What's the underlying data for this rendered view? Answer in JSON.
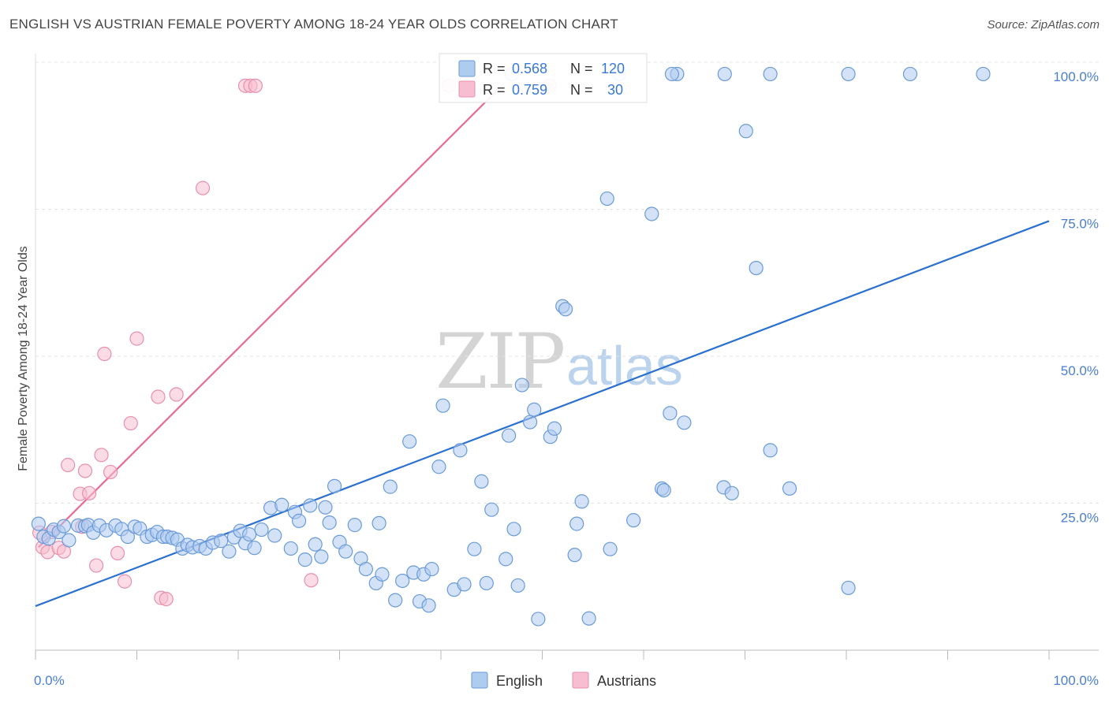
{
  "header": {
    "title": "ENGLISH VS AUSTRIAN FEMALE POVERTY AMONG 18-24 YEAR OLDS CORRELATION CHART",
    "source": "Source: ZipAtlas.com"
  },
  "watermark": {
    "part1": "ZIP",
    "part2": "atlas"
  },
  "stats_box": {
    "rows": [
      {
        "r_label": "R =",
        "r_value": "0.568",
        "n_label": "N =",
        "n_value": "120",
        "color": "#aecbf0",
        "stroke": "#6a9bd8"
      },
      {
        "r_label": "R =",
        "r_value": "0.759",
        "n_label": "N =",
        "n_value": "30",
        "color": "#f7bdd0",
        "stroke": "#e890ac"
      }
    ]
  },
  "legend": {
    "items": [
      {
        "label": "English",
        "color": "#aecbf0",
        "stroke": "#6a9bd8"
      },
      {
        "label": "Austrians",
        "color": "#f7bdd0",
        "stroke": "#e890ac"
      }
    ]
  },
  "chart_data": {
    "type": "scatter",
    "title": "ENGLISH VS AUSTRIAN FEMALE POVERTY AMONG 18-24 YEAR OLDS CORRELATION CHART",
    "xlabel": "",
    "ylabel": "Female Poverty Among 18-24 Year Olds",
    "xlim": [
      0,
      100
    ],
    "ylim": [
      0,
      100
    ],
    "x_tick_labels": [
      "0.0%",
      "100.0%"
    ],
    "y_tick_labels": [
      "25.0%",
      "50.0%",
      "75.0%",
      "100.0%"
    ],
    "y_ticks": [
      25,
      50,
      75,
      100
    ],
    "grid": true,
    "legend_position": "bottom-center",
    "series": [
      {
        "name": "English",
        "color": "#6a9bd8",
        "fill": "#aecbf0",
        "trend_color": "#2a70d0",
        "trend": {
          "x": [
            0,
            100
          ],
          "y": [
            7.5,
            73
          ]
        },
        "points": [
          [
            0.3,
            21.5
          ],
          [
            0.8,
            19.3
          ],
          [
            1.3,
            19.0
          ],
          [
            1.8,
            20.5
          ],
          [
            2.3,
            20.1
          ],
          [
            2.8,
            21.1
          ],
          [
            3.3,
            18.7
          ],
          [
            4.2,
            21.2
          ],
          [
            4.9,
            21.1
          ],
          [
            5.2,
            21.3
          ],
          [
            5.7,
            20.0
          ],
          [
            6.3,
            21.2
          ],
          [
            7.0,
            20.4
          ],
          [
            7.9,
            21.2
          ],
          [
            8.5,
            20.6
          ],
          [
            9.1,
            19.3
          ],
          [
            9.8,
            21.0
          ],
          [
            10.3,
            20.7
          ],
          [
            11.0,
            19.3
          ],
          [
            11.5,
            19.6
          ],
          [
            12.0,
            20.1
          ],
          [
            12.6,
            19.3
          ],
          [
            13.0,
            19.3
          ],
          [
            13.5,
            19.1
          ],
          [
            14.0,
            18.8
          ],
          [
            14.5,
            17.3
          ],
          [
            15.0,
            17.9
          ],
          [
            15.5,
            17.5
          ],
          [
            16.2,
            17.7
          ],
          [
            16.8,
            17.3
          ],
          [
            17.5,
            18.3
          ],
          [
            18.3,
            18.6
          ],
          [
            19.1,
            16.8
          ],
          [
            19.6,
            19.2
          ],
          [
            20.2,
            20.3
          ],
          [
            20.7,
            18.2
          ],
          [
            21.1,
            19.7
          ],
          [
            21.6,
            17.4
          ],
          [
            22.3,
            20.5
          ],
          [
            23.2,
            24.2
          ],
          [
            23.6,
            19.5
          ],
          [
            24.3,
            24.7
          ],
          [
            25.2,
            17.3
          ],
          [
            25.6,
            23.5
          ],
          [
            26.0,
            22.0
          ],
          [
            26.6,
            15.4
          ],
          [
            27.1,
            24.6
          ],
          [
            27.6,
            18.0
          ],
          [
            28.2,
            15.9
          ],
          [
            28.6,
            24.3
          ],
          [
            29.0,
            21.7
          ],
          [
            29.5,
            27.9
          ],
          [
            30.0,
            18.4
          ],
          [
            30.6,
            16.8
          ],
          [
            31.5,
            21.3
          ],
          [
            32.1,
            15.6
          ],
          [
            32.6,
            13.8
          ],
          [
            33.6,
            11.4
          ],
          [
            33.9,
            21.6
          ],
          [
            34.2,
            12.9
          ],
          [
            35.0,
            27.8
          ],
          [
            35.5,
            8.5
          ],
          [
            36.2,
            11.8
          ],
          [
            36.9,
            35.5
          ],
          [
            37.3,
            13.2
          ],
          [
            37.9,
            8.3
          ],
          [
            38.3,
            12.9
          ],
          [
            38.8,
            7.6
          ],
          [
            39.1,
            13.8
          ],
          [
            39.8,
            31.2
          ],
          [
            40.2,
            41.6
          ],
          [
            41.3,
            10.3
          ],
          [
            41.9,
            34.0
          ],
          [
            42.3,
            11.2
          ],
          [
            43.3,
            17.2
          ],
          [
            44.0,
            28.7
          ],
          [
            44.5,
            11.4
          ],
          [
            45.0,
            23.9
          ],
          [
            46.4,
            15.5
          ],
          [
            46.7,
            36.5
          ],
          [
            47.2,
            20.6
          ],
          [
            47.6,
            11.0
          ],
          [
            48.0,
            45.1
          ],
          [
            48.8,
            38.8
          ],
          [
            49.2,
            40.9
          ],
          [
            49.6,
            5.3
          ],
          [
            50.8,
            36.3
          ],
          [
            51.2,
            37.7
          ],
          [
            52.0,
            58.5
          ],
          [
            52.3,
            58.0
          ],
          [
            53.2,
            16.2
          ],
          [
            53.4,
            21.5
          ],
          [
            53.9,
            25.3
          ],
          [
            54.6,
            5.4
          ],
          [
            56.4,
            76.8
          ],
          [
            56.7,
            17.2
          ],
          [
            59.0,
            22.1
          ],
          [
            60.8,
            74.2
          ],
          [
            61.8,
            27.5
          ],
          [
            62.0,
            27.2
          ],
          [
            62.6,
            40.3
          ],
          [
            64.0,
            38.7
          ],
          [
            67.9,
            27.7
          ],
          [
            68.7,
            26.7
          ],
          [
            70.1,
            88.3
          ],
          [
            71.1,
            65.0
          ],
          [
            72.5,
            34.0
          ],
          [
            74.4,
            27.5
          ],
          [
            80.2,
            10.6
          ],
          [
            63.3,
            98.0
          ],
          [
            68.0,
            98.0
          ],
          [
            72.5,
            98.0
          ],
          [
            80.2,
            98.0
          ],
          [
            86.3,
            98.0
          ],
          [
            93.5,
            98.0
          ],
          [
            47.0,
            98.0
          ],
          [
            57.6,
            98.0
          ],
          [
            62.8,
            98.0
          ]
        ]
      },
      {
        "name": "Austrians",
        "color": "#e890ac",
        "fill": "#f7bdd0",
        "trend_color": "#e86a94",
        "trend": {
          "x": [
            0.3,
            46.0
          ],
          "y": [
            17.5,
            96.0
          ]
        },
        "points": [
          [
            0.4,
            20.0
          ],
          [
            0.7,
            17.5
          ],
          [
            1.2,
            16.7
          ],
          [
            1.6,
            20.1
          ],
          [
            2.3,
            17.4
          ],
          [
            2.8,
            16.8
          ],
          [
            3.2,
            31.5
          ],
          [
            4.4,
            26.6
          ],
          [
            4.6,
            21.0
          ],
          [
            4.9,
            30.5
          ],
          [
            5.3,
            26.7
          ],
          [
            6.0,
            14.4
          ],
          [
            6.5,
            33.2
          ],
          [
            7.4,
            30.3
          ],
          [
            8.1,
            16.5
          ],
          [
            8.8,
            11.7
          ],
          [
            6.8,
            50.4
          ],
          [
            9.4,
            38.6
          ],
          [
            10.0,
            53.0
          ],
          [
            12.1,
            43.1
          ],
          [
            12.4,
            8.9
          ],
          [
            12.9,
            8.7
          ],
          [
            13.9,
            43.5
          ],
          [
            16.5,
            78.6
          ],
          [
            20.7,
            96.0
          ],
          [
            21.2,
            96.0
          ],
          [
            21.7,
            96.0
          ],
          [
            27.2,
            11.9
          ],
          [
            40.8,
            96.0
          ],
          [
            50.7,
            96.0
          ]
        ]
      }
    ]
  }
}
